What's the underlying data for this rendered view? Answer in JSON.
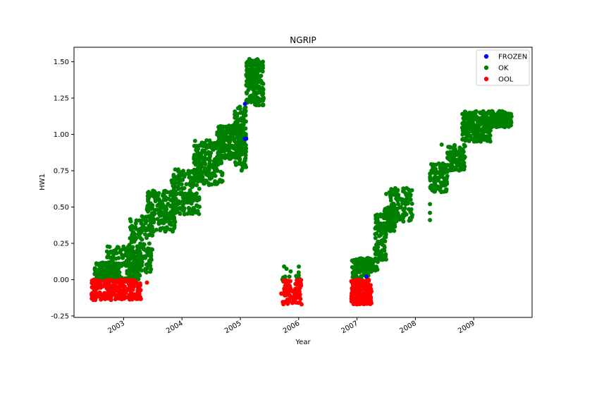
{
  "chart_data": {
    "type": "scatter",
    "title": "NGRIP",
    "xlabel": "Year",
    "ylabel": "HW1",
    "xlim": [
      2002.15,
      2010.0
    ],
    "ylim": [
      -0.26,
      1.6
    ],
    "x_ticks": [
      "2003",
      "2004",
      "2005",
      "2006",
      "2007",
      "2008",
      "2009"
    ],
    "y_ticks": [
      "-0.25",
      "0.00",
      "0.25",
      "0.50",
      "0.75",
      "1.00",
      "1.25",
      "1.50"
    ],
    "legend": {
      "position": "top-right",
      "entries": [
        {
          "label": "FROZEN",
          "color": "#0000ff"
        },
        {
          "label": "OK",
          "color": "#008000"
        },
        {
          "label": "OOL",
          "color": "#ff0000"
        }
      ]
    },
    "series": [
      {
        "name": "OK",
        "color": "#008000",
        "bands": [
          {
            "x0": 2002.5,
            "x1": 2002.9,
            "y0": 0.0,
            "y1": 0.12,
            "n": 140
          },
          {
            "x0": 2002.7,
            "x1": 2003.3,
            "y0": 0.0,
            "y1": 0.23,
            "n": 160
          },
          {
            "x0": 2003.1,
            "x1": 2003.5,
            "y0": 0.05,
            "y1": 0.45,
            "n": 140
          },
          {
            "x0": 2003.4,
            "x1": 2003.9,
            "y0": 0.33,
            "y1": 0.62,
            "n": 190
          },
          {
            "x0": 2003.8,
            "x1": 2004.3,
            "y0": 0.45,
            "y1": 0.76,
            "n": 200
          },
          {
            "x0": 2004.2,
            "x1": 2004.7,
            "y0": 0.65,
            "y1": 0.96,
            "n": 200
          },
          {
            "x0": 2004.6,
            "x1": 2005.0,
            "y0": 0.83,
            "y1": 1.06,
            "n": 180
          },
          {
            "x0": 2004.9,
            "x1": 2005.1,
            "y0": 0.75,
            "y1": 1.2,
            "n": 120
          },
          {
            "x0": 2005.1,
            "x1": 2005.4,
            "y0": 1.2,
            "y1": 1.52,
            "n": 200
          },
          {
            "x0": 2005.7,
            "x1": 2006.05,
            "y0": 0.0,
            "y1": 0.09,
            "n": 12
          },
          {
            "x0": 2006.9,
            "x1": 2007.2,
            "y0": 0.0,
            "y1": 0.14,
            "n": 60
          },
          {
            "x0": 2007.0,
            "x1": 2007.35,
            "y0": 0.05,
            "y1": 0.15,
            "n": 90
          },
          {
            "x0": 2007.3,
            "x1": 2007.5,
            "y0": 0.12,
            "y1": 0.45,
            "n": 90
          },
          {
            "x0": 2007.45,
            "x1": 2007.65,
            "y0": 0.33,
            "y1": 0.5,
            "n": 70
          },
          {
            "x0": 2007.55,
            "x1": 2007.95,
            "y0": 0.4,
            "y1": 0.63,
            "n": 110
          },
          {
            "x0": 2008.25,
            "x1": 2008.55,
            "y0": 0.6,
            "y1": 0.8,
            "n": 110
          },
          {
            "x0": 2008.55,
            "x1": 2008.85,
            "y0": 0.75,
            "y1": 0.93,
            "n": 110
          },
          {
            "x0": 2008.8,
            "x1": 2009.0,
            "y0": 0.95,
            "y1": 1.16,
            "n": 90
          },
          {
            "x0": 2009.0,
            "x1": 2009.3,
            "y0": 0.95,
            "y1": 1.16,
            "n": 160
          },
          {
            "x0": 2009.3,
            "x1": 2009.65,
            "y0": 1.05,
            "y1": 1.16,
            "n": 140
          }
        ],
        "points": [
          [
            2008.25,
            0.41
          ],
          [
            2008.25,
            0.46
          ],
          [
            2008.25,
            0.52
          ],
          [
            2008.45,
            0.93
          ],
          [
            2007.5,
            0.59
          ],
          [
            2007.85,
            0.63
          ],
          [
            2006.0,
            0.05
          ],
          [
            2005.75,
            0.09
          ]
        ]
      },
      {
        "name": "OOL",
        "color": "#ff0000",
        "bands": [
          {
            "x0": 2002.45,
            "x1": 2003.3,
            "y0": -0.14,
            "y1": 0.0,
            "n": 260
          },
          {
            "x0": 2005.7,
            "x1": 2006.05,
            "y0": -0.17,
            "y1": 0.0,
            "n": 90
          },
          {
            "x0": 2006.9,
            "x1": 2007.25,
            "y0": -0.17,
            "y1": 0.0,
            "n": 170
          }
        ],
        "points": [
          [
            2003.4,
            -0.02
          ],
          [
            2006.05,
            -0.17
          ],
          [
            2007.0,
            -0.17
          ]
        ]
      },
      {
        "name": "FROZEN",
        "color": "#0000ff",
        "bands": [],
        "points": [
          [
            2005.08,
            1.21
          ],
          [
            2005.08,
            0.97
          ],
          [
            2005.1,
            0.97
          ],
          [
            2007.16,
            0.02
          ]
        ]
      }
    ]
  }
}
